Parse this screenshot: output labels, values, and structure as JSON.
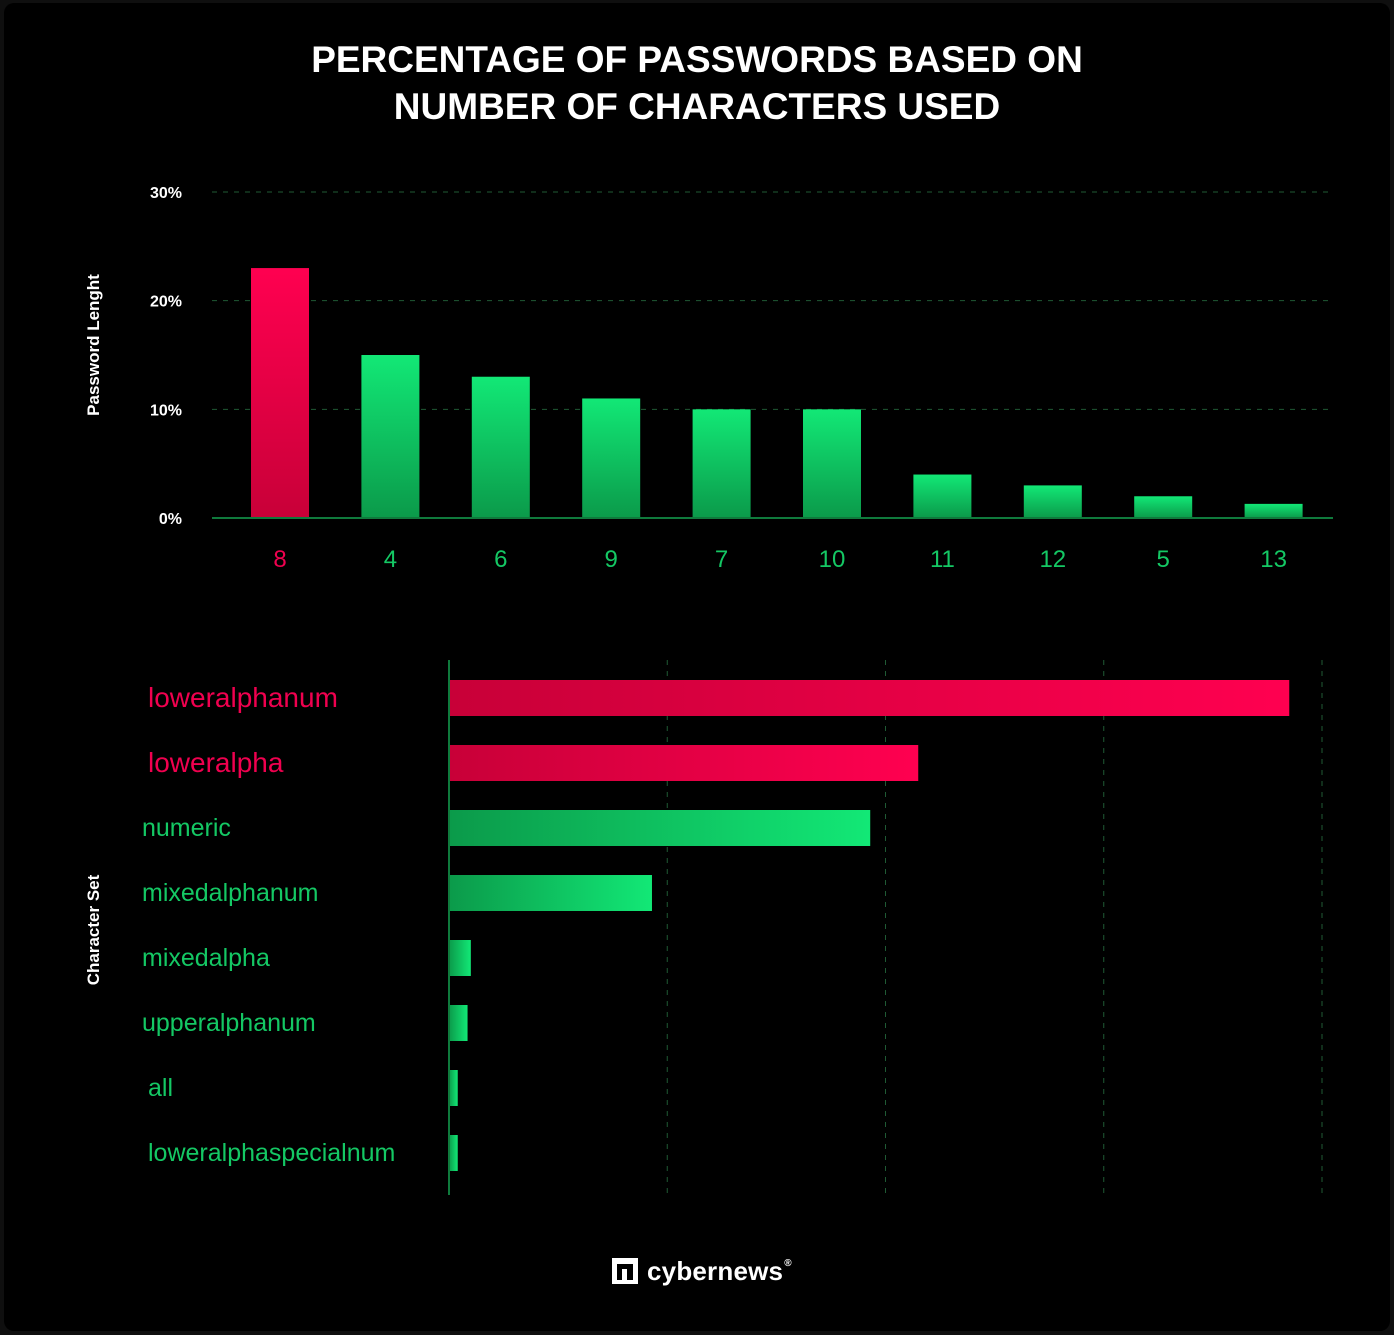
{
  "title": {
    "line1": "PERCENTAGE OF PASSWORDS BASED ON",
    "line2": "NUMBER OF CHARACTERS USED"
  },
  "colors": {
    "highlight": "#f0004f",
    "bar": "#14e16e",
    "label_green": "#14c864",
    "axis": "#0f7a3c",
    "background": "#000000"
  },
  "chart_data": [
    {
      "type": "bar",
      "orientation": "vertical",
      "ylabel": "Password Lenght",
      "xlabel": "",
      "categories": [
        "8",
        "4",
        "6",
        "9",
        "7",
        "10",
        "11",
        "12",
        "5",
        "13"
      ],
      "values": [
        23,
        15,
        13,
        11,
        10,
        10,
        4,
        3,
        2,
        1.3
      ],
      "highlight": [
        "8"
      ],
      "y_ticks": [
        "30%",
        "20%",
        "10%",
        "0%"
      ],
      "ylim": [
        0,
        30
      ],
      "grid": true
    },
    {
      "type": "bar",
      "orientation": "horizontal",
      "ylabel": "Character Set",
      "categories": [
        "loweralphanum",
        "loweralpha",
        "numeric",
        "mixedalphanum",
        "mixedalpha",
        "upperalphanum",
        "all",
        "loweralphaspecialnum"
      ],
      "values": [
        38.5,
        21.5,
        19.3,
        9.3,
        1.0,
        0.85,
        0.4,
        0.4
      ],
      "highlight": [
        "loweralphanum",
        "loweralpha"
      ],
      "xlim": [
        0,
        40
      ],
      "grid": true
    }
  ],
  "footer": {
    "brand": "cybernews",
    "registered": "®"
  }
}
